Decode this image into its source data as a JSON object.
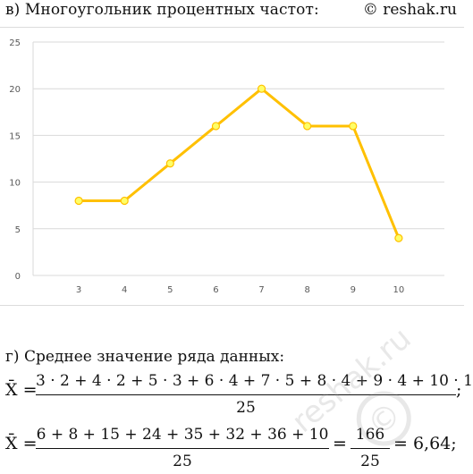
{
  "header": {
    "subtitle": "в) Многоугольник процентных частот:",
    "brand": "© reshak.ru"
  },
  "chart_data": {
    "type": "line",
    "categories": [
      "3",
      "4",
      "5",
      "6",
      "7",
      "8",
      "9",
      "10"
    ],
    "series": [
      {
        "values": [
          8,
          8,
          12,
          16,
          20,
          16,
          16,
          4
        ]
      }
    ],
    "yticks": [
      "0",
      "5",
      "10",
      "15",
      "20",
      "25"
    ],
    "ylim": [
      0,
      25
    ],
    "grid": true,
    "xlabel": "",
    "ylabel": "",
    "line_color": "#FFC000",
    "marker_fill": "#FFFF66"
  },
  "section_g": {
    "title": "г) Среднее значение ряда данных:",
    "line1": {
      "lhs": "X̄ =",
      "numerator": "3 · 2 + 4 · 2 + 5 · 3 + 6 · 4 + 7 · 5 + 8 · 4 + 9 · 4 + 10 · 1",
      "denominator": "25",
      "tail": ";"
    },
    "line2": {
      "lhs": "X̄ =",
      "numerator": "6 + 8 + 15 + 24 + 35 + 32 + 36 + 10",
      "denominator": "25",
      "eq": "=",
      "numerator2": "166",
      "denominator2": "25",
      "result": "= 6,64;"
    }
  },
  "watermark": {
    "text": "reshak.ru",
    "symbol": "©"
  }
}
